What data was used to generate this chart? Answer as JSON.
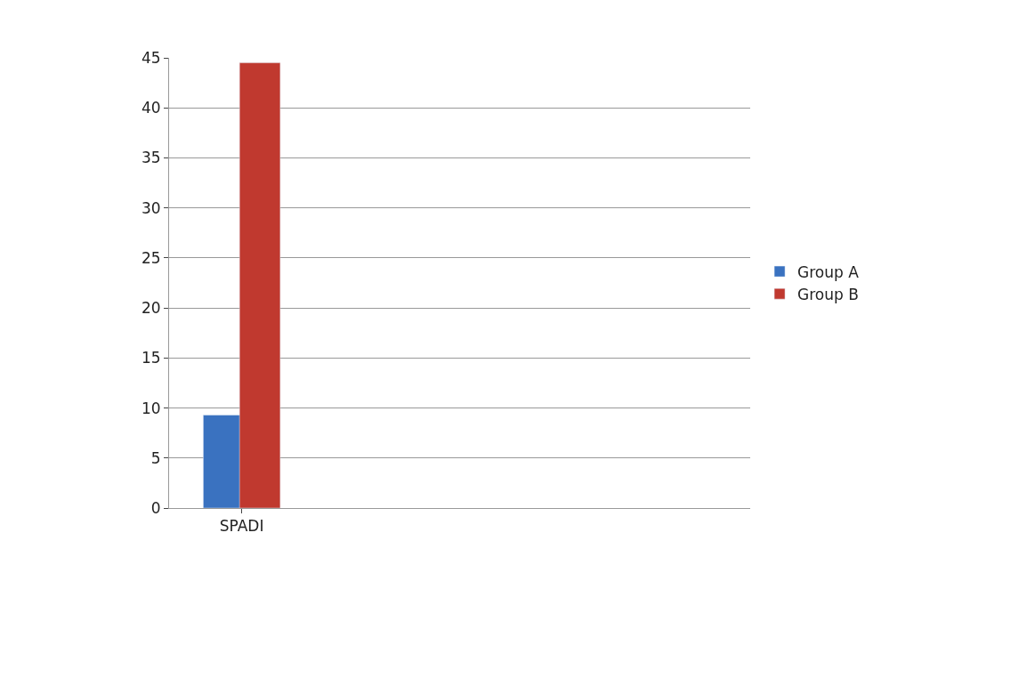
{
  "chart_data": {
    "type": "bar",
    "categories": [
      "SPADI",
      null,
      null,
      null
    ],
    "series": [
      {
        "name": "Group A",
        "color": "#3a72c0",
        "values": [
          9.3,
          null,
          null,
          null
        ]
      },
      {
        "name": "Group B",
        "color": "#c0392f",
        "values": [
          44.5,
          null,
          null,
          null
        ]
      }
    ],
    "ylim": [
      0,
      45
    ],
    "yticks": [
      0,
      5,
      10,
      15,
      20,
      25,
      30,
      35,
      40,
      45
    ],
    "grid": "y",
    "legend": "right"
  }
}
